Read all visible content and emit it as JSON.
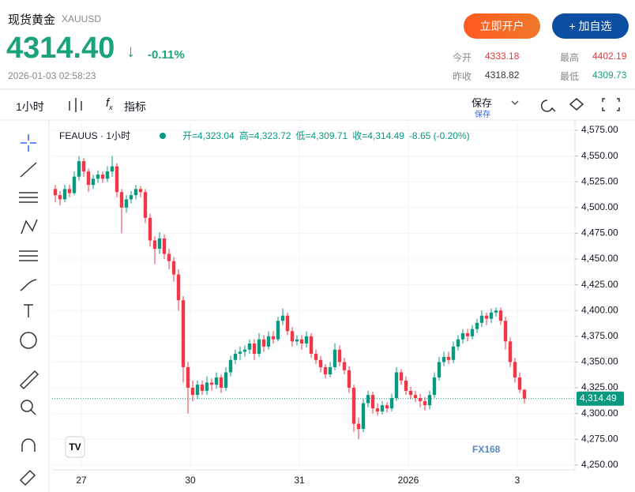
{
  "header": {
    "title": "现货黄金",
    "symbol": "XAUUSD",
    "price": "4314.40",
    "change": "-0.11%",
    "datetime": "2026-01-03 02:58:23",
    "buttons": [
      "立即开户",
      "+ 加自选"
    ],
    "stats": [
      {
        "label": "今开",
        "value": "4333.18"
      },
      {
        "label": "最高",
        "value": "4402.19"
      },
      {
        "label": "昨收",
        "value": "4318.82"
      },
      {
        "label": "最低",
        "value": "4309.73"
      }
    ]
  },
  "toolbar": {
    "interval": "1小时",
    "indicators": "指标",
    "save": "保存",
    "save_sub": "保存"
  },
  "chart_data": {
    "type": "candlestick",
    "symbol": "FEAUUS · 1小时",
    "legend": [
      "开=4,323.04",
      "高=4,323.72",
      "低=4,309.71",
      "收=4,314.49",
      "-8.65 (-0.20%)"
    ],
    "up_color": "#089981",
    "down_color": "#f23645",
    "grid": true,
    "ylim": [
      4245,
      4582
    ],
    "yticks": [
      {
        "value": 4250,
        "label": "4,250.00"
      },
      {
        "value": 4275,
        "label": "4,275.00"
      },
      {
        "value": 4300,
        "label": "4,300.00"
      },
      {
        "value": 4325,
        "label": "4,325.00"
      },
      {
        "value": 4350,
        "label": "4,350.00"
      },
      {
        "value": 4375,
        "label": "4,375.00"
      },
      {
        "value": 4400,
        "label": "4,400.00"
      },
      {
        "value": 4425,
        "label": "4,425.00"
      },
      {
        "value": 4450,
        "label": "4,450.00"
      },
      {
        "value": 4475,
        "label": "4,475.00"
      },
      {
        "value": 4500,
        "label": "4,500.00"
      },
      {
        "value": 4525,
        "label": "4,525.00"
      },
      {
        "value": 4550,
        "label": "4,550.00"
      },
      {
        "value": 4575,
        "label": "4,575.00"
      }
    ],
    "xlim": [
      -0.5,
      110
    ],
    "xticks": [
      {
        "value": 5.5,
        "label": "27"
      },
      {
        "value": 28.5,
        "label": "30"
      },
      {
        "value": 51.5,
        "label": "31"
      },
      {
        "value": 74.5,
        "label": "2026"
      },
      {
        "value": 97.5,
        "label": "3"
      }
    ],
    "last_price": {
      "value": 4314.49,
      "label": "4,314.49"
    },
    "watermark": "FX168",
    "ohlc": [
      [
        4518,
        4522,
        4505,
        4512
      ],
      [
        4512,
        4516,
        4502,
        4508
      ],
      [
        4508,
        4522,
        4505,
        4518
      ],
      [
        4518,
        4522,
        4510,
        4514
      ],
      [
        4514,
        4535,
        4512,
        4530
      ],
      [
        4530,
        4550,
        4526,
        4545
      ],
      [
        4545,
        4548,
        4530,
        4535
      ],
      [
        4535,
        4538,
        4515,
        4522
      ],
      [
        4522,
        4532,
        4518,
        4528
      ],
      [
        4528,
        4536,
        4524,
        4532
      ],
      [
        4532,
        4535,
        4524,
        4528
      ],
      [
        4528,
        4540,
        4525,
        4535
      ],
      [
        4535,
        4550,
        4530,
        4540
      ],
      [
        4540,
        4543,
        4510,
        4515
      ],
      [
        4515,
        4518,
        4475,
        4500
      ],
      [
        4500,
        4512,
        4495,
        4508
      ],
      [
        4508,
        4516,
        4504,
        4512
      ],
      [
        4512,
        4522,
        4508,
        4518
      ],
      [
        4518,
        4521,
        4510,
        4515
      ],
      [
        4515,
        4518,
        4485,
        4490
      ],
      [
        4490,
        4494,
        4462,
        4468
      ],
      [
        4468,
        4472,
        4445,
        4460
      ],
      [
        4460,
        4476,
        4455,
        4470
      ],
      [
        4470,
        4474,
        4450,
        4455
      ],
      [
        4455,
        4460,
        4440,
        4448
      ],
      [
        4448,
        4452,
        4428,
        4435
      ],
      [
        4435,
        4440,
        4400,
        4410
      ],
      [
        4410,
        4414,
        4330,
        4345
      ],
      [
        4345,
        4350,
        4300,
        4325
      ],
      [
        4325,
        4332,
        4312,
        4318
      ],
      [
        4318,
        4332,
        4314,
        4328
      ],
      [
        4328,
        4332,
        4318,
        4322
      ],
      [
        4322,
        4336,
        4318,
        4330
      ],
      [
        4330,
        4334,
        4322,
        4328
      ],
      [
        4328,
        4340,
        4324,
        4335
      ],
      [
        4335,
        4338,
        4320,
        4325
      ],
      [
        4325,
        4345,
        4322,
        4340
      ],
      [
        4340,
        4356,
        4336,
        4352
      ],
      [
        4352,
        4362,
        4348,
        4358
      ],
      [
        4358,
        4365,
        4352,
        4360
      ],
      [
        4360,
        4366,
        4355,
        4362
      ],
      [
        4362,
        4372,
        4358,
        4368
      ],
      [
        4368,
        4372,
        4352,
        4358
      ],
      [
        4358,
        4378,
        4355,
        4372
      ],
      [
        4372,
        4376,
        4360,
        4365
      ],
      [
        4365,
        4380,
        4362,
        4375
      ],
      [
        4375,
        4380,
        4368,
        4372
      ],
      [
        4372,
        4394,
        4370,
        4390
      ],
      [
        4390,
        4402,
        4386,
        4395
      ],
      [
        4395,
        4398,
        4376,
        4380
      ],
      [
        4380,
        4384,
        4365,
        4370
      ],
      [
        4370,
        4376,
        4366,
        4372
      ],
      [
        4372,
        4376,
        4362,
        4368
      ],
      [
        4368,
        4380,
        4364,
        4375
      ],
      [
        4375,
        4378,
        4354,
        4358
      ],
      [
        4358,
        4362,
        4348,
        4352
      ],
      [
        4352,
        4356,
        4340,
        4345
      ],
      [
        4345,
        4348,
        4334,
        4338
      ],
      [
        4338,
        4350,
        4335,
        4345
      ],
      [
        4345,
        4368,
        4342,
        4362
      ],
      [
        4362,
        4366,
        4346,
        4350
      ],
      [
        4350,
        4354,
        4338,
        4342
      ],
      [
        4342,
        4346,
        4320,
        4325
      ],
      [
        4325,
        4328,
        4282,
        4290
      ],
      [
        4290,
        4296,
        4275,
        4285
      ],
      [
        4285,
        4314,
        4282,
        4310
      ],
      [
        4310,
        4322,
        4306,
        4318
      ],
      [
        4318,
        4321,
        4300,
        4305
      ],
      [
        4305,
        4310,
        4298,
        4302
      ],
      [
        4302,
        4312,
        4299,
        4308
      ],
      [
        4308,
        4311,
        4301,
        4305
      ],
      [
        4305,
        4319,
        4302,
        4315
      ],
      [
        4315,
        4345,
        4312,
        4340
      ],
      [
        4340,
        4343,
        4328,
        4332
      ],
      [
        4332,
        4336,
        4318,
        4322
      ],
      [
        4322,
        4326,
        4314,
        4318
      ],
      [
        4318,
        4322,
        4311,
        4315
      ],
      [
        4315,
        4319,
        4306,
        4312
      ],
      [
        4312,
        4316,
        4303,
        4308
      ],
      [
        4308,
        4322,
        4304,
        4318
      ],
      [
        4318,
        4340,
        4315,
        4335
      ],
      [
        4335,
        4355,
        4332,
        4350
      ],
      [
        4350,
        4360,
        4346,
        4355
      ],
      [
        4355,
        4360,
        4348,
        4352
      ],
      [
        4352,
        4370,
        4349,
        4365
      ],
      [
        4365,
        4376,
        4361,
        4372
      ],
      [
        4372,
        4382,
        4368,
        4378
      ],
      [
        4378,
        4382,
        4370,
        4375
      ],
      [
        4375,
        4386,
        4372,
        4382
      ],
      [
        4382,
        4392,
        4378,
        4388
      ],
      [
        4388,
        4400,
        4384,
        4395
      ],
      [
        4395,
        4398,
        4386,
        4392
      ],
      [
        4392,
        4402,
        4388,
        4398
      ],
      [
        4398,
        4403,
        4394,
        4400
      ],
      [
        4400,
        4403,
        4386,
        4390
      ],
      [
        4390,
        4394,
        4362,
        4370
      ],
      [
        4370,
        4374,
        4345,
        4350
      ],
      [
        4350,
        4354,
        4330,
        4335
      ],
      [
        4335,
        4340,
        4320,
        4323.04
      ],
      [
        4323.04,
        4323.72,
        4309.71,
        4314.49
      ]
    ]
  }
}
